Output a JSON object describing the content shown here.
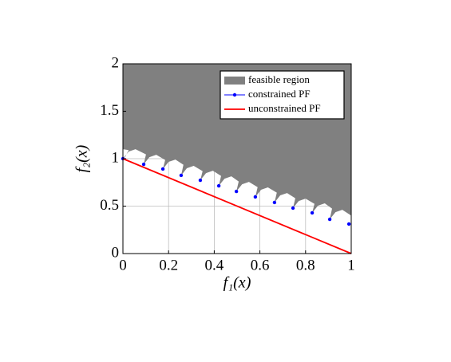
{
  "chart_data": {
    "type": "line",
    "xlabel": "f₁(x)",
    "ylabel": "f₂(x)",
    "xlim": [
      0,
      1
    ],
    "ylim": [
      0,
      2
    ],
    "xticks": [
      0,
      0.2,
      0.4,
      0.6,
      0.8,
      1
    ],
    "yticks": [
      0,
      0.5,
      1,
      1.5,
      2
    ],
    "grid": true,
    "legend": "north east",
    "series": [
      {
        "name": "feasible region",
        "type": "area",
        "color": "#808080",
        "x": [
          0,
          0.025,
          0.01,
          0,
          0.025,
          0.055,
          0.101,
          0.091,
          0.116,
          0.146,
          0.185,
          0.175,
          0.2,
          0.23,
          0.265,
          0.255,
          0.28,
          0.31,
          0.349,
          0.339,
          0.364,
          0.394,
          0.43,
          0.42,
          0.445,
          0.475,
          0.507,
          0.497,
          0.522,
          0.552,
          0.59,
          0.58,
          0.605,
          0.635,
          0.674,
          0.664,
          0.689,
          0.719,
          0.755,
          0.745,
          0.77,
          0.8,
          0.839,
          0.829,
          0.854,
          0.884,
          0.916,
          0.906,
          0.931,
          0.961,
          1
        ],
        "values": [
          1.1,
          1.09,
          1.02,
          1,
          1.075,
          1.1,
          1.045,
          0.941,
          1.016,
          1.041,
          0.986,
          0.891,
          0.966,
          0.991,
          0.936,
          0.824,
          0.899,
          0.924,
          0.869,
          0.773,
          0.848,
          0.873,
          0.818,
          0.714,
          0.789,
          0.814,
          0.759,
          0.655,
          0.73,
          0.755,
          0.7,
          0.597,
          0.672,
          0.697,
          0.642,
          0.538,
          0.613,
          0.638,
          0.583,
          0.479,
          0.554,
          0.579,
          0.524,
          0.429,
          0.504,
          0.529,
          0.474,
          0.361,
          0.436,
          0.461,
          0.4
        ]
      },
      {
        "name": "constrained PF",
        "type": "scatter",
        "color": "#0000ff",
        "x": [
          0,
          0.091,
          0.175,
          0.255,
          0.339,
          0.42,
          0.497,
          0.58,
          0.664,
          0.745,
          0.829,
          0.906,
          0.99
        ],
        "values": [
          1,
          0.941,
          0.891,
          0.824,
          0.773,
          0.714,
          0.655,
          0.597,
          0.538,
          0.479,
          0.429,
          0.361,
          0.311
        ]
      },
      {
        "name": "unconstrained PF",
        "type": "line",
        "color": "#ff0000",
        "x": [
          0,
          1
        ],
        "values": [
          1,
          0
        ]
      }
    ]
  }
}
